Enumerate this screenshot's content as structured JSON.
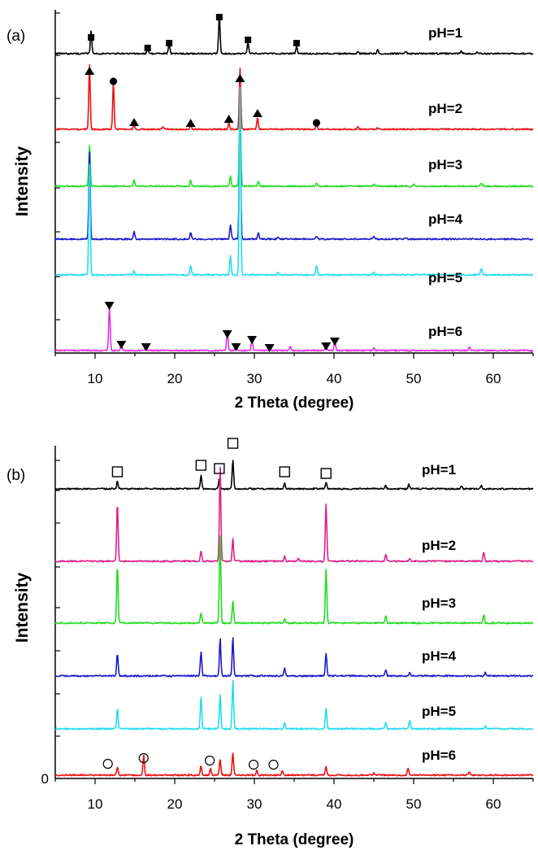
{
  "chart_data": [
    {
      "panel": "(a)",
      "type": "line",
      "xlabel": "2 Theta (degree)",
      "ylabel": "Intensity",
      "xlim": [
        5,
        65
      ],
      "x_ticks": [
        10,
        20,
        30,
        40,
        50,
        60
      ],
      "y_tick_labels": [],
      "legend": "inline labels at right of each trace",
      "series": [
        {
          "name": "pH=1",
          "color": "#000000",
          "peaks": [
            [
              9.5,
              28
            ],
            [
              16.6,
              9
            ],
            [
              19.3,
              12
            ],
            [
              25.6,
              48
            ],
            [
              29.2,
              14
            ],
            [
              35.3,
              9
            ],
            [
              43,
              3
            ],
            [
              45.5,
              5
            ],
            [
              49,
              3
            ],
            [
              56,
              3
            ],
            [
              58,
              2
            ]
          ]
        },
        {
          "name": "pH=2",
          "color": "#ee1111",
          "peaks": [
            [
              9.3,
              82
            ],
            [
              12.3,
              58
            ],
            [
              14.9,
              6
            ],
            [
              18.5,
              3
            ],
            [
              22,
              6
            ],
            [
              26.8,
              8
            ],
            [
              28.2,
              75
            ],
            [
              30.4,
              14
            ],
            [
              37.8,
              6
            ],
            [
              43,
              3
            ],
            [
              45.5,
              2
            ]
          ]
        },
        {
          "name": "pH=3",
          "color": "#22dd22",
          "peaks": [
            [
              9.3,
              52
            ],
            [
              14.9,
              8
            ],
            [
              22,
              7
            ],
            [
              27,
              12
            ],
            [
              28.2,
              110
            ],
            [
              30.5,
              6
            ],
            [
              37.8,
              4
            ],
            [
              45,
              2
            ],
            [
              50,
              2
            ],
            [
              58.5,
              3
            ]
          ]
        },
        {
          "name": "pH=4",
          "color": "#1a1acc",
          "peaks": [
            [
              9.3,
              110
            ],
            [
              14.9,
              10
            ],
            [
              22,
              8
            ],
            [
              27,
              18
            ],
            [
              28.2,
              170
            ],
            [
              30.5,
              8
            ],
            [
              33,
              3
            ],
            [
              37.8,
              3
            ],
            [
              45,
              3
            ],
            [
              49,
              2
            ]
          ]
        },
        {
          "name": "pH=5",
          "color": "#22ddee",
          "peaks": [
            [
              9.3,
              140
            ],
            [
              14.9,
              5
            ],
            [
              22,
              12
            ],
            [
              27,
              24
            ],
            [
              28.2,
              230
            ],
            [
              33,
              3
            ],
            [
              37.8,
              12
            ],
            [
              45,
              3
            ],
            [
              58.5,
              8
            ]
          ]
        },
        {
          "name": "pH=6",
          "color": "#e030e0",
          "peaks": [
            [
              11.8,
              55
            ],
            [
              13.3,
              8
            ],
            [
              16.4,
              6
            ],
            [
              26.6,
              24
            ],
            [
              27.7,
              8
            ],
            [
              29.7,
              14
            ],
            [
              34.5,
              5
            ],
            [
              39,
              7
            ],
            [
              40.1,
              12
            ],
            [
              45,
              3
            ],
            [
              57,
              4
            ]
          ]
        }
      ],
      "markers": [
        {
          "shape": "filled-square",
          "series": "pH=1",
          "x": [
            9.5,
            16.6,
            19.3,
            25.6,
            29.2,
            35.3
          ]
        },
        {
          "shape": "filled-triangle-up",
          "series": "pH=2",
          "x": [
            9.3,
            14.9,
            22.0,
            26.8,
            28.2,
            30.4
          ]
        },
        {
          "shape": "filled-circle",
          "series": "pH=2",
          "x": [
            12.3,
            37.8
          ]
        },
        {
          "shape": "filled-triangle-down",
          "series": "pH=6",
          "x": [
            11.8,
            13.3,
            16.4,
            26.6,
            27.7,
            29.7,
            31.9,
            39.0,
            40.1
          ]
        }
      ]
    },
    {
      "panel": "(b)",
      "type": "line",
      "xlabel": "2 Theta (degree)",
      "ylabel": "Intensity",
      "xlim": [
        5,
        65
      ],
      "x_ticks": [
        10,
        20,
        30,
        40,
        50,
        60
      ],
      "y_tick_labels": [
        "0"
      ],
      "legend": "inline labels at right of each trace",
      "series": [
        {
          "name": "pH=1",
          "color": "#000000",
          "peaks": [
            [
              12.8,
              10
            ],
            [
              23.3,
              16
            ],
            [
              25.6,
              12
            ],
            [
              27.3,
              36
            ],
            [
              33.8,
              8
            ],
            [
              39,
              8
            ],
            [
              46.5,
              4
            ],
            [
              49.4,
              5
            ],
            [
              56,
              3
            ],
            [
              58.5,
              4
            ]
          ]
        },
        {
          "name": "pH=2",
          "color": "#e0208a",
          "peaks": [
            [
              12.8,
              72
            ],
            [
              23.3,
              12
            ],
            [
              25.7,
              118
            ],
            [
              27.3,
              28
            ],
            [
              33.8,
              6
            ],
            [
              35.5,
              3
            ],
            [
              39,
              70
            ],
            [
              46.5,
              8
            ],
            [
              49.5,
              3
            ],
            [
              58.8,
              12
            ]
          ]
        },
        {
          "name": "pH=3",
          "color": "#22dd22",
          "peaks": [
            [
              12.8,
              72
            ],
            [
              23.3,
              12
            ],
            [
              25.7,
              110
            ],
            [
              27.3,
              28
            ],
            [
              33.8,
              5
            ],
            [
              39,
              65
            ],
            [
              46.5,
              8
            ],
            [
              58.8,
              10
            ]
          ]
        },
        {
          "name": "pH=4",
          "color": "#1a1acc",
          "peaks": [
            [
              12.8,
              28
            ],
            [
              23.3,
              30
            ],
            [
              25.7,
              46
            ],
            [
              27.3,
              48
            ],
            [
              33.8,
              10
            ],
            [
              39,
              28
            ],
            [
              46.5,
              8
            ],
            [
              49.5,
              5
            ],
            [
              59,
              4
            ]
          ]
        },
        {
          "name": "pH=5",
          "color": "#22ddee",
          "peaks": [
            [
              12.8,
              25
            ],
            [
              23.3,
              40
            ],
            [
              25.7,
              43
            ],
            [
              27.3,
              60
            ],
            [
              33.8,
              8
            ],
            [
              39,
              25
            ],
            [
              46.5,
              8
            ],
            [
              49.5,
              10
            ],
            [
              59,
              4
            ]
          ]
        },
        {
          "name": "pH=6",
          "color": "#ee1111",
          "peaks": [
            [
              12.8,
              10
            ],
            [
              16.1,
              24
            ],
            [
              23.3,
              12
            ],
            [
              24.5,
              8
            ],
            [
              25.7,
              20
            ],
            [
              27.3,
              28
            ],
            [
              30.3,
              6
            ],
            [
              33.5,
              5
            ],
            [
              39,
              10
            ],
            [
              45,
              3
            ],
            [
              49.3,
              8
            ],
            [
              57,
              4
            ]
          ]
        }
      ],
      "markers": [
        {
          "shape": "open-square",
          "series": "pH=1",
          "x": [
            12.8,
            23.3,
            25.6,
            27.3,
            33.8,
            39.0
          ]
        },
        {
          "shape": "open-circle",
          "series": "pH=6",
          "x": [
            11.6,
            16.1,
            24.4,
            29.9,
            32.4
          ]
        }
      ]
    }
  ]
}
